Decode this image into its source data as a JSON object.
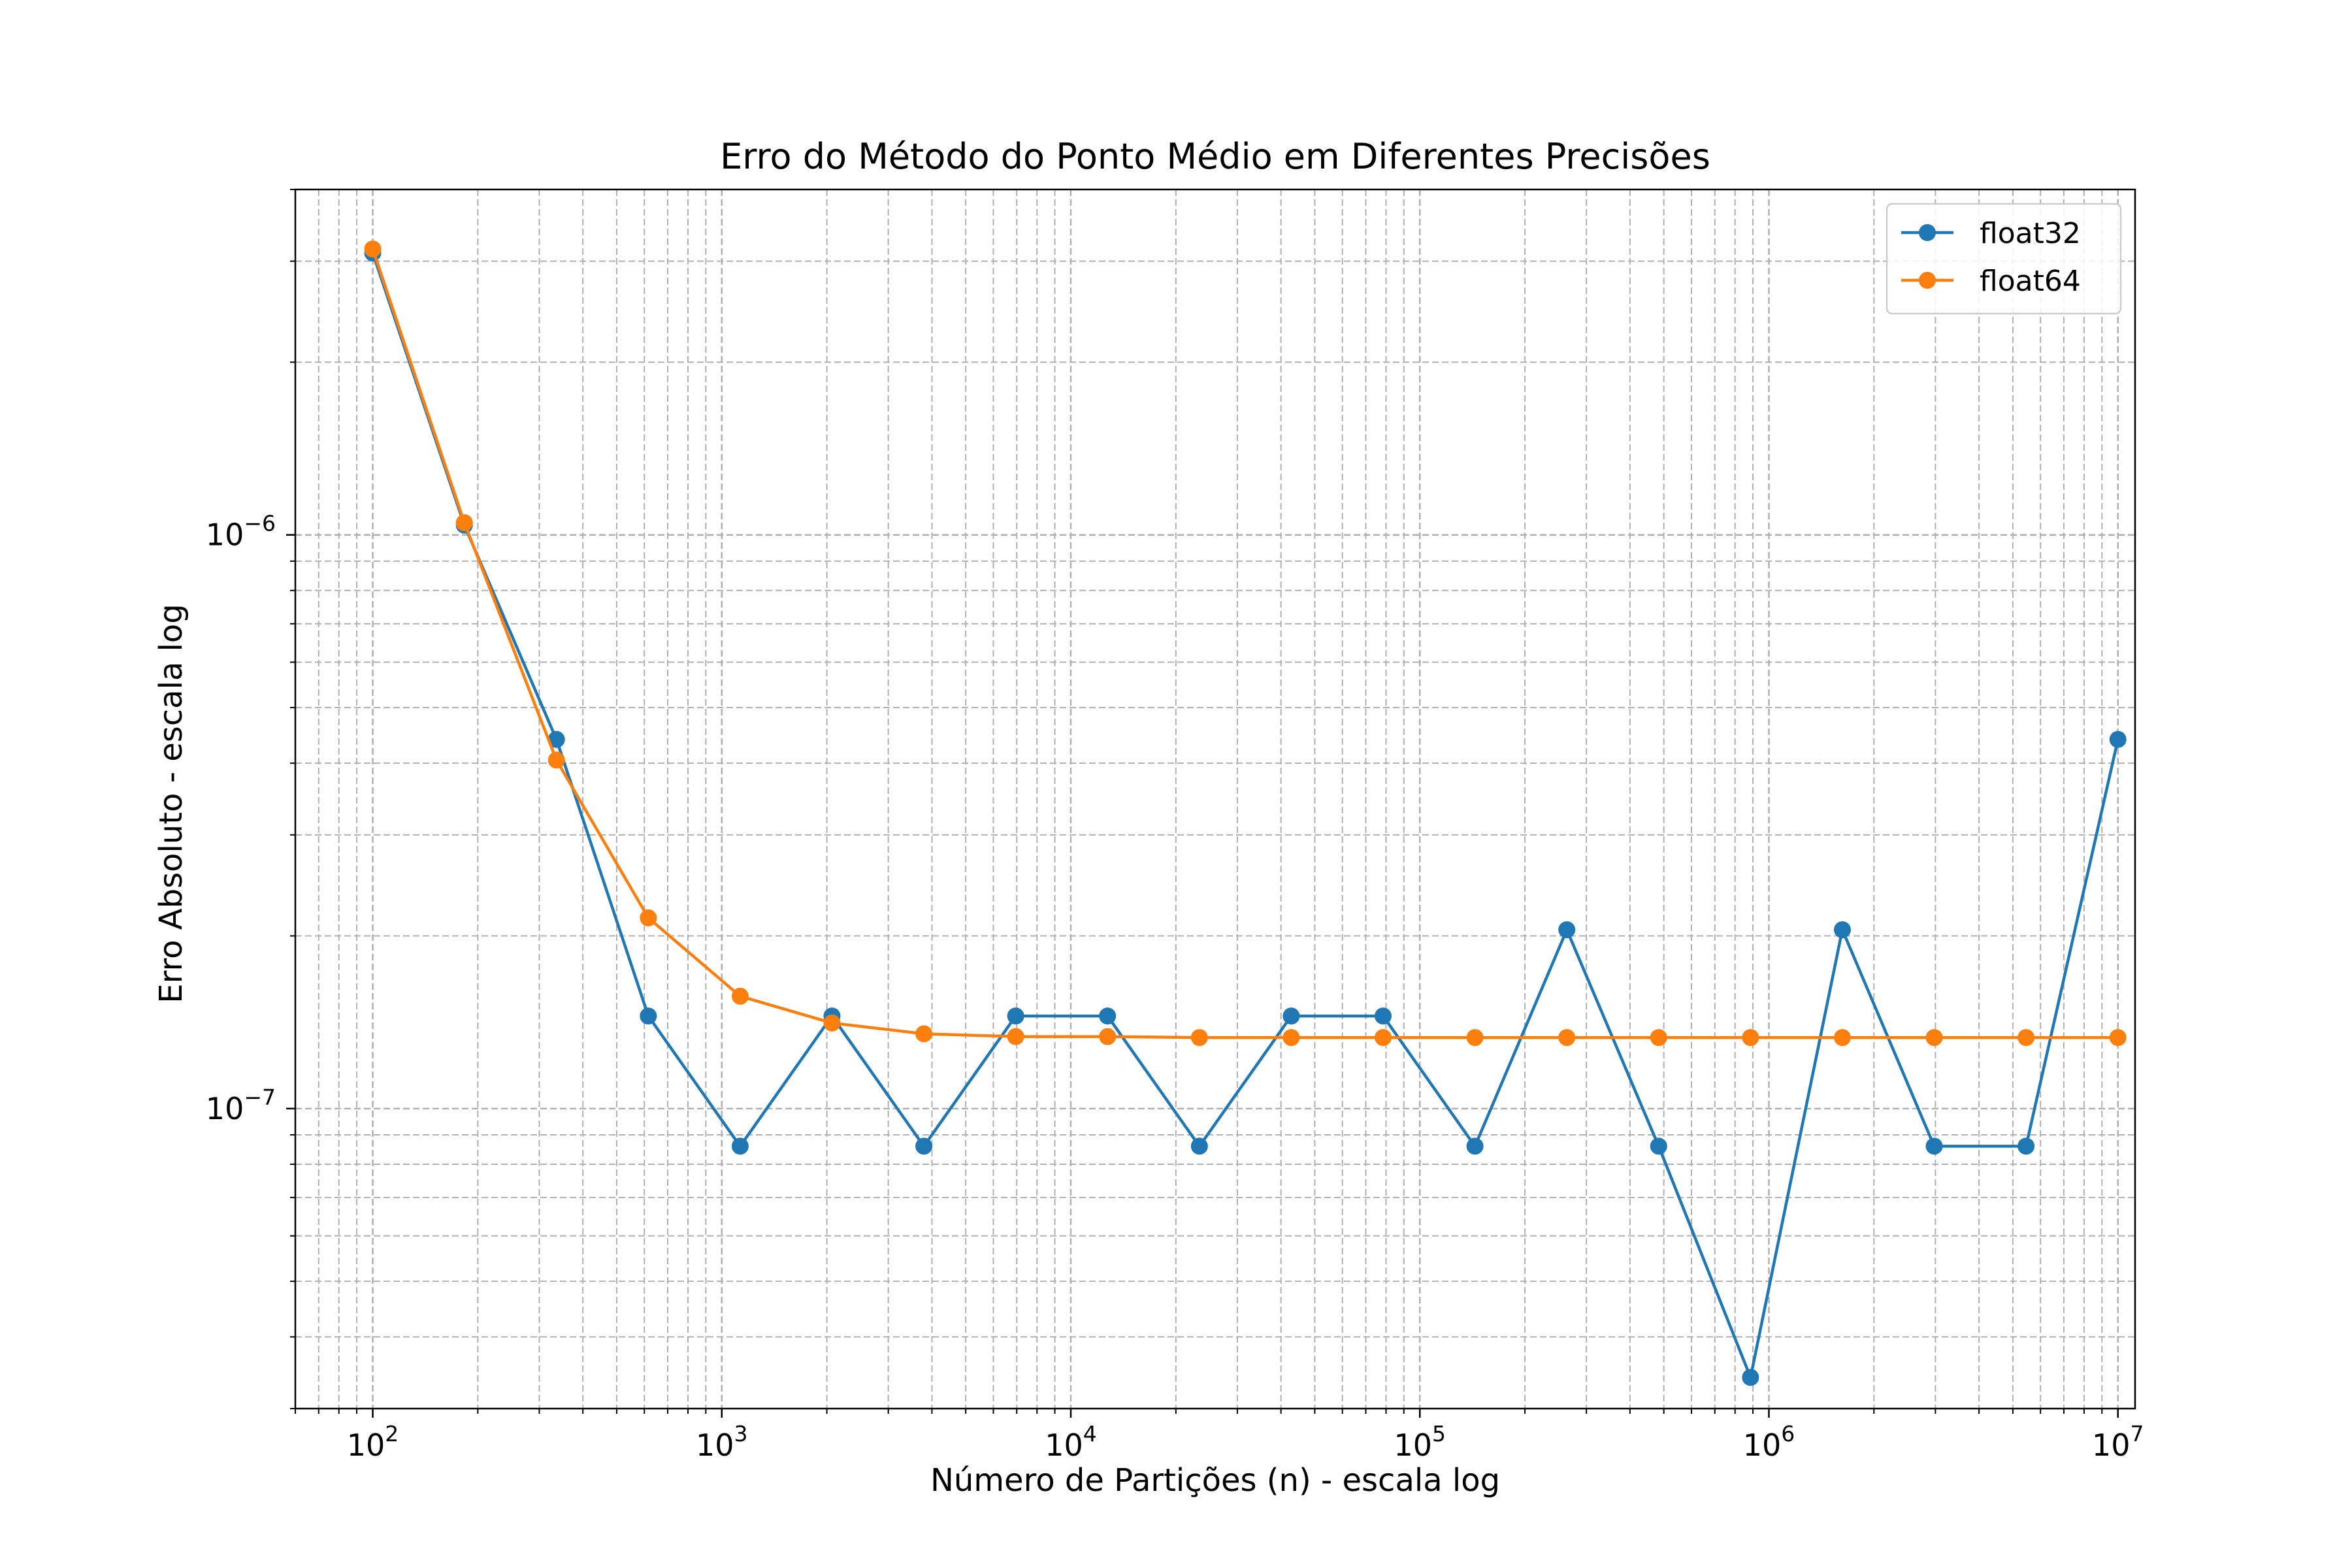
{
  "chart_data": {
    "type": "line",
    "title": "Erro do Método do Ponto Médio em Diferentes Precisões",
    "xlabel": "Número de Partições (n) - escala log",
    "ylabel": "Erro Absoluto - escala log",
    "xscale": "log",
    "yscale": "log",
    "xlim": [
      60,
      11200000
    ],
    "ylim": [
      3e-08,
      4e-06
    ],
    "x_major_ticks": [
      100,
      1000,
      10000,
      100000,
      1000000,
      10000000
    ],
    "x_tick_labels": [
      {
        "base": "10",
        "exp": "2"
      },
      {
        "base": "10",
        "exp": "3"
      },
      {
        "base": "10",
        "exp": "4"
      },
      {
        "base": "10",
        "exp": "5"
      },
      {
        "base": "10",
        "exp": "6"
      },
      {
        "base": "10",
        "exp": "7"
      }
    ],
    "y_major_ticks": [
      1e-07,
      1e-06
    ],
    "y_tick_labels": [
      {
        "base": "10",
        "exp": "−7"
      },
      {
        "base": "10",
        "exp": "−6"
      }
    ],
    "grid": "both (major and minor), dashed",
    "legend_position": "top-right",
    "x": [
      100,
      183,
      336,
      616,
      1129,
      2069,
      3793,
      6952,
      12743,
      23357,
      42813,
      78476,
      143845,
      263665,
      483293,
      885867,
      1623777,
      2976351,
      5455595,
      10000000
    ],
    "series": [
      {
        "name": "float32",
        "color": "#1f77b4",
        "values": [
          3.1e-06,
          1.04e-06,
          4.4e-07,
          1.45e-07,
          8.6e-08,
          1.45e-07,
          8.6e-08,
          1.45e-07,
          1.45e-07,
          8.6e-08,
          1.45e-07,
          1.45e-07,
          8.6e-08,
          2.05e-07,
          8.6e-08,
          3.4e-08,
          2.05e-07,
          8.6e-08,
          8.6e-08,
          4.4e-07
        ]
      },
      {
        "name": "float64",
        "color": "#ff7f0e",
        "values": [
          3.15e-06,
          1.05e-06,
          4.05e-07,
          2.15e-07,
          1.57e-07,
          1.41e-07,
          1.35e-07,
          1.335e-07,
          1.335e-07,
          1.33e-07,
          1.33e-07,
          1.33e-07,
          1.33e-07,
          1.33e-07,
          1.33e-07,
          1.33e-07,
          1.33e-07,
          1.33e-07,
          1.33e-07,
          1.33e-07
        ]
      }
    ]
  }
}
